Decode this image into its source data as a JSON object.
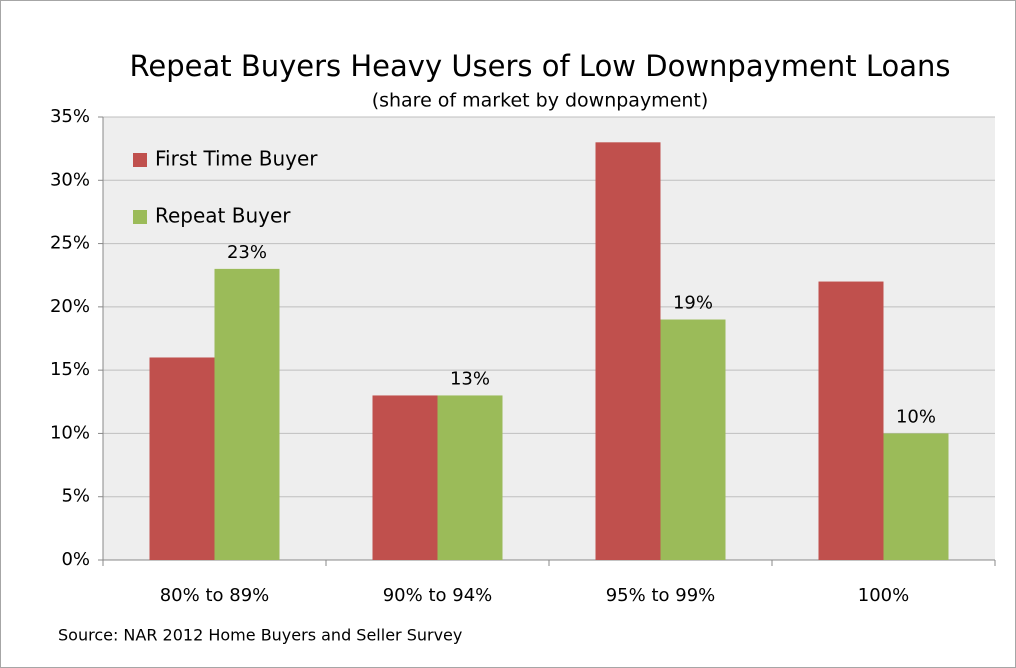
{
  "chart_data": {
    "type": "bar",
    "title": "Repeat Buyers Heavy Users of Low Downpayment Loans",
    "subtitle": "(share of market by downpayment)",
    "source": "Source: NAR 2012 Home Buyers and Seller Survey",
    "categories": [
      "80% to 89%",
      "90% to 94%",
      "95% to 99%",
      "100%"
    ],
    "series": [
      {
        "name": "First Time Buyer",
        "color": "#c0504d",
        "values": [
          16,
          13,
          33,
          22
        ]
      },
      {
        "name": "Repeat Buyer",
        "color": "#9bbb59",
        "values": [
          23,
          13,
          19,
          10
        ],
        "value_labels": [
          "23%",
          "13%",
          "19%",
          "10%"
        ]
      }
    ],
    "ylim": [
      0,
      35
    ],
    "yticks": [
      {
        "value": 0,
        "label": "0%"
      },
      {
        "value": 5,
        "label": "5%"
      },
      {
        "value": 10,
        "label": "10%"
      },
      {
        "value": 15,
        "label": "15%"
      },
      {
        "value": 20,
        "label": "20%"
      },
      {
        "value": 25,
        "label": "25%"
      },
      {
        "value": 30,
        "label": "30%"
      },
      {
        "value": 35,
        "label": "35%"
      }
    ],
    "grid": true,
    "legend": "top-left"
  }
}
